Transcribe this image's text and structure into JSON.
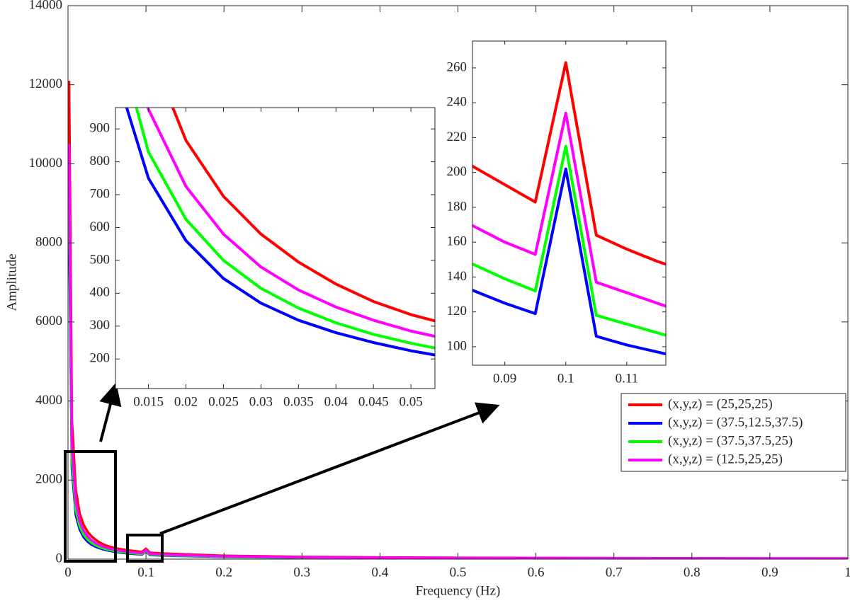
{
  "chart_data": [
    {
      "type": "line",
      "xlabel": "Frequency (Hz)",
      "ylabel": "Amplitude",
      "xlim": [
        0,
        1
      ],
      "ylim": [
        0,
        14000
      ],
      "xticks": [
        0,
        0.1,
        0.2,
        0.3,
        0.4,
        0.5,
        0.6,
        0.7,
        0.8,
        0.9,
        1
      ],
      "yticks": [
        0,
        2000,
        4000,
        6000,
        8000,
        10000,
        12000,
        14000
      ],
      "legend": "east",
      "x": [
        0.0014,
        0.005,
        0.01,
        0.015,
        0.02,
        0.025,
        0.03,
        0.035,
        0.04,
        0.045,
        0.05,
        0.055,
        0.06,
        0.065,
        0.07,
        0.075,
        0.08,
        0.085,
        0.09,
        0.095,
        0.1,
        0.105,
        0.11,
        0.115,
        0.12,
        0.2,
        0.3,
        0.4,
        0.5,
        0.6,
        0.7,
        0.8,
        0.9,
        1
      ],
      "series": [
        {
          "name": "(x,y,z) = (25,25,25)",
          "color": "#ff0000",
          "values": [
            12100,
            3500,
            1750,
            1150,
            865,
            695,
            580,
            495,
            428,
            375,
            335,
            305,
            280,
            260,
            243,
            228,
            214,
            203,
            193,
            183,
            263,
            164,
            156,
            149,
            143,
            86,
            57,
            43,
            34,
            29,
            25,
            21,
            19,
            17
          ]
        },
        {
          "name": "(x,y,z) = (37.5,12.5,37.5)",
          "color": "#0000ff",
          "values": [
            8600,
            2300,
            1120,
            750,
            560,
            445,
            370,
            318,
            280,
            250,
            225,
            205,
            188,
            173,
            160,
            149,
            140,
            132,
            125,
            119,
            202,
            106,
            101,
            97,
            93,
            56,
            37,
            28,
            22,
            19,
            16,
            14,
            12,
            11
          ]
        },
        {
          "name": "(x,y,z) = (37.5,37.5,25)",
          "color": "#00ff00",
          "values": [
            9400,
            2500,
            1250,
            830,
            625,
            500,
            415,
            355,
            310,
            275,
            248,
            225,
            206,
            190,
            176,
            164,
            154,
            147,
            139,
            132,
            215,
            118,
            113,
            108,
            103,
            62,
            41,
            31,
            25,
            21,
            18,
            15,
            14,
            12
          ]
        },
        {
          "name": "(x,y,z) = (12.5,25,25)",
          "color": "#ff00ff",
          "values": [
            10500,
            2900,
            1450,
            960,
            725,
            580,
            480,
            410,
            358,
            318,
            285,
            260,
            238,
            220,
            204,
            190,
            178,
            169,
            160,
            153,
            234,
            137,
            131,
            125,
            119,
            72,
            48,
            36,
            29,
            24,
            21,
            18,
            16,
            14
          ]
        }
      ]
    },
    {
      "type": "line",
      "xlim": [
        0.0106,
        0.0532
      ],
      "ylim": [
        110,
        965
      ],
      "xticks": [
        0.015,
        0.02,
        0.025,
        0.03,
        0.035,
        0.04,
        0.045,
        0.05
      ],
      "yticks": [
        200,
        300,
        400,
        500,
        600,
        700,
        800,
        900
      ]
    },
    {
      "type": "line",
      "xlim": [
        0.0847,
        0.1164
      ],
      "ylim": [
        89.4,
        275.4
      ],
      "xticks": [
        0.09,
        0.1,
        0.11
      ],
      "yticks": [
        100,
        120,
        140,
        160,
        180,
        200,
        220,
        240,
        260
      ]
    }
  ]
}
